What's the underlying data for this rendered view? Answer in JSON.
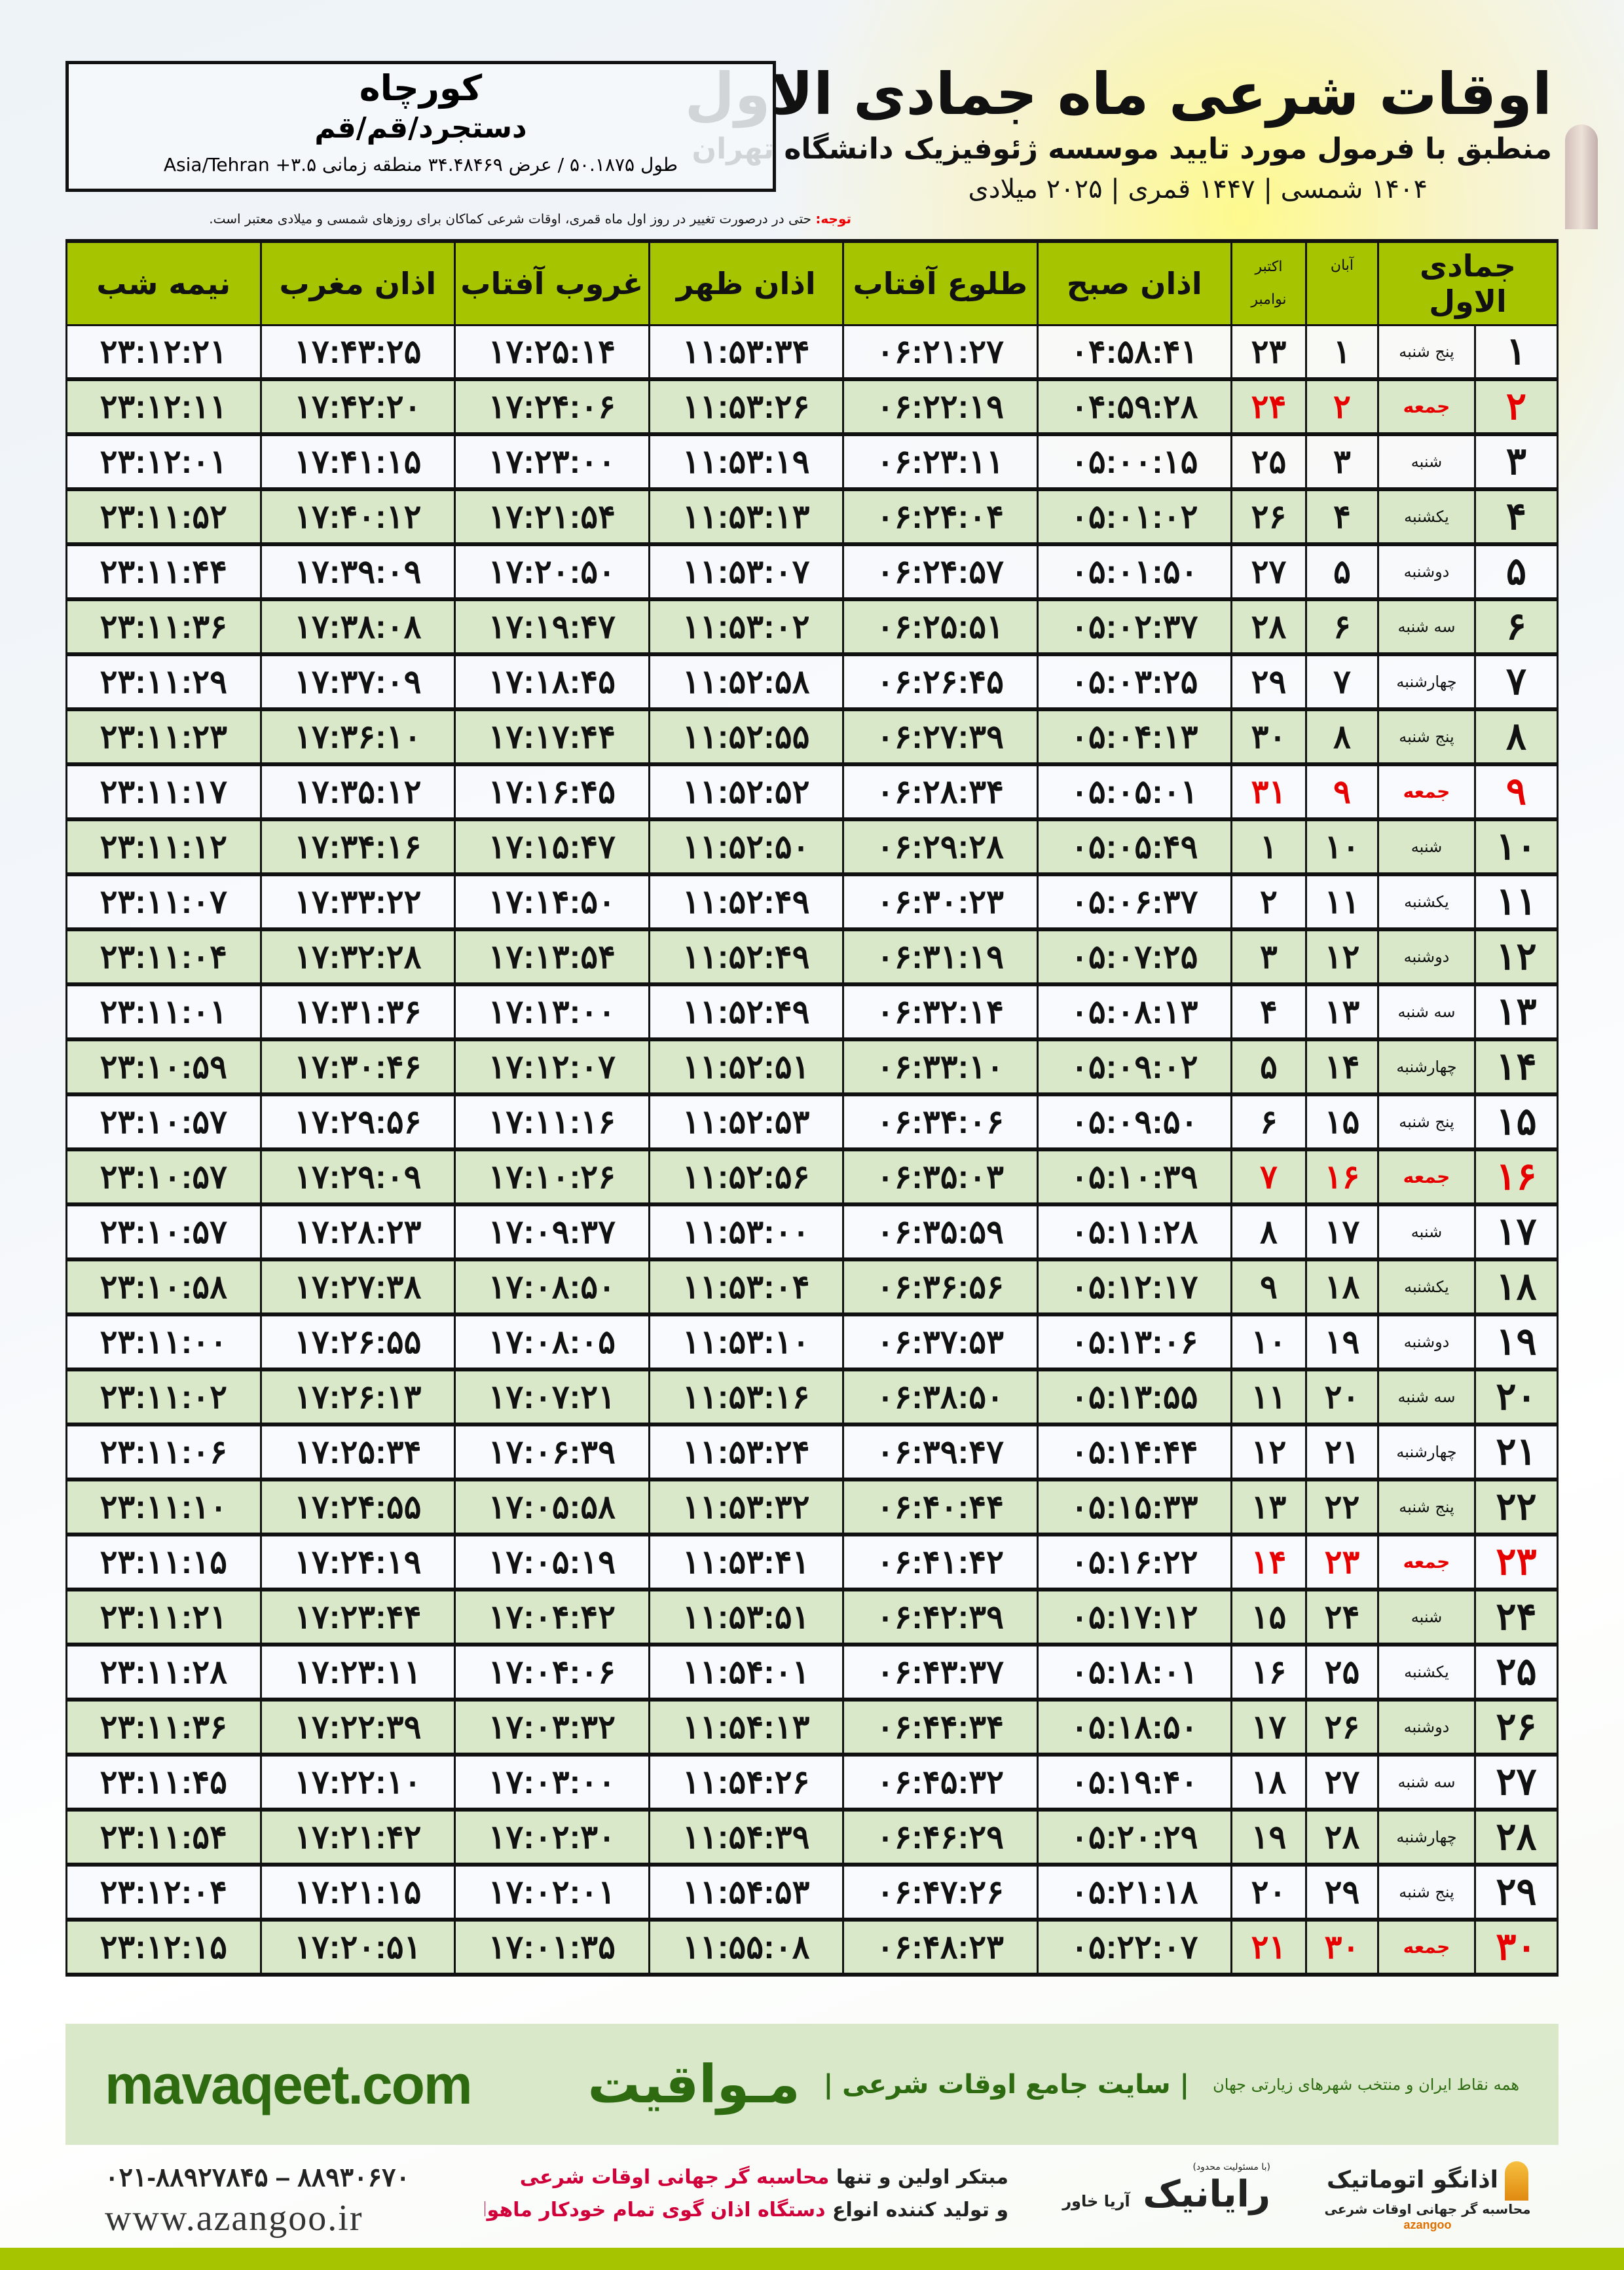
{
  "header": {
    "title": "اوقات شرعی ماه جمادی الاول",
    "subtitle": "منطبق با فرمول مورد تایید موسسه ژئوفیزیک دانشگاه تهران",
    "years": "۱۴۰۴ شمسی | ۱۴۴۷ قمری | ۲۰۲۵ میلادی"
  },
  "location": {
    "city": "کورچاه",
    "province": "دستجرد/قم/قم",
    "coords": "طول ۵۰.۱۸۷۵ / عرض ۳۴.۴۸۴۶۹ منطقه زمانی ۳.۵+ Asia/Tehran"
  },
  "notice": {
    "label": "توجه:",
    "text": " حتی در درصورت تغییر در روز اول ماه قمری، اوقات شرعی کماکان برای روزهای شمسی و میلادی معتبر است."
  },
  "table": {
    "headers": {
      "hijri": "جمادی الاول",
      "aban": "آبان",
      "greg1": "اکتبر",
      "greg2": "نوامبر",
      "fajr": "اذان صبح",
      "sunrise": "طلوع آفتاب",
      "dhuhr": "اذان ظهر",
      "sunset": "غروب آفتاب",
      "maghrib": "اذان مغرب",
      "midnight": "نیمه شب"
    },
    "rows": [
      [
        "۱",
        "پنج شنبه",
        "۱",
        "۲۳",
        "۰۴:۵۸:۴۱",
        "۰۶:۲۱:۲۷",
        "۱۱:۵۳:۳۴",
        "۱۷:۲۵:۱۴",
        "۱۷:۴۳:۲۵",
        "۲۳:۱۲:۲۱"
      ],
      [
        "۲",
        "جمعه",
        "۲",
        "۲۴",
        "۰۴:۵۹:۲۸",
        "۰۶:۲۲:۱۹",
        "۱۱:۵۳:۲۶",
        "۱۷:۲۴:۰۶",
        "۱۷:۴۲:۲۰",
        "۲۳:۱۲:۱۱"
      ],
      [
        "۳",
        "شنبه",
        "۳",
        "۲۵",
        "۰۵:۰۰:۱۵",
        "۰۶:۲۳:۱۱",
        "۱۱:۵۳:۱۹",
        "۱۷:۲۳:۰۰",
        "۱۷:۴۱:۱۵",
        "۲۳:۱۲:۰۱"
      ],
      [
        "۴",
        "یکشنبه",
        "۴",
        "۲۶",
        "۰۵:۰۱:۰۲",
        "۰۶:۲۴:۰۴",
        "۱۱:۵۳:۱۳",
        "۱۷:۲۱:۵۴",
        "۱۷:۴۰:۱۲",
        "۲۳:۱۱:۵۲"
      ],
      [
        "۵",
        "دوشنبه",
        "۵",
        "۲۷",
        "۰۵:۰۱:۵۰",
        "۰۶:۲۴:۵۷",
        "۱۱:۵۳:۰۷",
        "۱۷:۲۰:۵۰",
        "۱۷:۳۹:۰۹",
        "۲۳:۱۱:۴۴"
      ],
      [
        "۶",
        "سه شنبه",
        "۶",
        "۲۸",
        "۰۵:۰۲:۳۷",
        "۰۶:۲۵:۵۱",
        "۱۱:۵۳:۰۲",
        "۱۷:۱۹:۴۷",
        "۱۷:۳۸:۰۸",
        "۲۳:۱۱:۳۶"
      ],
      [
        "۷",
        "چهارشنبه",
        "۷",
        "۲۹",
        "۰۵:۰۳:۲۵",
        "۰۶:۲۶:۴۵",
        "۱۱:۵۲:۵۸",
        "۱۷:۱۸:۴۵",
        "۱۷:۳۷:۰۹",
        "۲۳:۱۱:۲۹"
      ],
      [
        "۸",
        "پنج شنبه",
        "۸",
        "۳۰",
        "۰۵:۰۴:۱۳",
        "۰۶:۲۷:۳۹",
        "۱۱:۵۲:۵۵",
        "۱۷:۱۷:۴۴",
        "۱۷:۳۶:۱۰",
        "۲۳:۱۱:۲۳"
      ],
      [
        "۹",
        "جمعه",
        "۹",
        "۳۱",
        "۰۵:۰۵:۰۱",
        "۰۶:۲۸:۳۴",
        "۱۱:۵۲:۵۲",
        "۱۷:۱۶:۴۵",
        "۱۷:۳۵:۱۲",
        "۲۳:۱۱:۱۷"
      ],
      [
        "۱۰",
        "شنبه",
        "۱۰",
        "۱",
        "۰۵:۰۵:۴۹",
        "۰۶:۲۹:۲۸",
        "۱۱:۵۲:۵۰",
        "۱۷:۱۵:۴۷",
        "۱۷:۳۴:۱۶",
        "۲۳:۱۱:۱۲"
      ],
      [
        "۱۱",
        "یکشنبه",
        "۱۱",
        "۲",
        "۰۵:۰۶:۳۷",
        "۰۶:۳۰:۲۳",
        "۱۱:۵۲:۴۹",
        "۱۷:۱۴:۵۰",
        "۱۷:۳۳:۲۲",
        "۲۳:۱۱:۰۷"
      ],
      [
        "۱۲",
        "دوشنبه",
        "۱۲",
        "۳",
        "۰۵:۰۷:۲۵",
        "۰۶:۳۱:۱۹",
        "۱۱:۵۲:۴۹",
        "۱۷:۱۳:۵۴",
        "۱۷:۳۲:۲۸",
        "۲۳:۱۱:۰۴"
      ],
      [
        "۱۳",
        "سه شنبه",
        "۱۳",
        "۴",
        "۰۵:۰۸:۱۳",
        "۰۶:۳۲:۱۴",
        "۱۱:۵۲:۴۹",
        "۱۷:۱۳:۰۰",
        "۱۷:۳۱:۳۶",
        "۲۳:۱۱:۰۱"
      ],
      [
        "۱۴",
        "چهارشنبه",
        "۱۴",
        "۵",
        "۰۵:۰۹:۰۲",
        "۰۶:۳۳:۱۰",
        "۱۱:۵۲:۵۱",
        "۱۷:۱۲:۰۷",
        "۱۷:۳۰:۴۶",
        "۲۳:۱۰:۵۹"
      ],
      [
        "۱۵",
        "پنج شنبه",
        "۱۵",
        "۶",
        "۰۵:۰۹:۵۰",
        "۰۶:۳۴:۰۶",
        "۱۱:۵۲:۵۳",
        "۱۷:۱۱:۱۶",
        "۱۷:۲۹:۵۶",
        "۲۳:۱۰:۵۷"
      ],
      [
        "۱۶",
        "جمعه",
        "۱۶",
        "۷",
        "۰۵:۱۰:۳۹",
        "۰۶:۳۵:۰۳",
        "۱۱:۵۲:۵۶",
        "۱۷:۱۰:۲۶",
        "۱۷:۲۹:۰۹",
        "۲۳:۱۰:۵۷"
      ],
      [
        "۱۷",
        "شنبه",
        "۱۷",
        "۸",
        "۰۵:۱۱:۲۸",
        "۰۶:۳۵:۵۹",
        "۱۱:۵۳:۰۰",
        "۱۷:۰۹:۳۷",
        "۱۷:۲۸:۲۳",
        "۲۳:۱۰:۵۷"
      ],
      [
        "۱۸",
        "یکشنبه",
        "۱۸",
        "۹",
        "۰۵:۱۲:۱۷",
        "۰۶:۳۶:۵۶",
        "۱۱:۵۳:۰۴",
        "۱۷:۰۸:۵۰",
        "۱۷:۲۷:۳۸",
        "۲۳:۱۰:۵۸"
      ],
      [
        "۱۹",
        "دوشنبه",
        "۱۹",
        "۱۰",
        "۰۵:۱۳:۰۶",
        "۰۶:۳۷:۵۳",
        "۱۱:۵۳:۱۰",
        "۱۷:۰۸:۰۵",
        "۱۷:۲۶:۵۵",
        "۲۳:۱۱:۰۰"
      ],
      [
        "۲۰",
        "سه شنبه",
        "۲۰",
        "۱۱",
        "۰۵:۱۳:۵۵",
        "۰۶:۳۸:۵۰",
        "۱۱:۵۳:۱۶",
        "۱۷:۰۷:۲۱",
        "۱۷:۲۶:۱۳",
        "۲۳:۱۱:۰۲"
      ],
      [
        "۲۱",
        "چهارشنبه",
        "۲۱",
        "۱۲",
        "۰۵:۱۴:۴۴",
        "۰۶:۳۹:۴۷",
        "۱۱:۵۳:۲۴",
        "۱۷:۰۶:۳۹",
        "۱۷:۲۵:۳۴",
        "۲۳:۱۱:۰۶"
      ],
      [
        "۲۲",
        "پنج شنبه",
        "۲۲",
        "۱۳",
        "۰۵:۱۵:۳۳",
        "۰۶:۴۰:۴۴",
        "۱۱:۵۳:۳۲",
        "۱۷:۰۵:۵۸",
        "۱۷:۲۴:۵۵",
        "۲۳:۱۱:۱۰"
      ],
      [
        "۲۳",
        "جمعه",
        "۲۳",
        "۱۴",
        "۰۵:۱۶:۲۲",
        "۰۶:۴۱:۴۲",
        "۱۱:۵۳:۴۱",
        "۱۷:۰۵:۱۹",
        "۱۷:۲۴:۱۹",
        "۲۳:۱۱:۱۵"
      ],
      [
        "۲۴",
        "شنبه",
        "۲۴",
        "۱۵",
        "۰۵:۱۷:۱۲",
        "۰۶:۴۲:۳۹",
        "۱۱:۵۳:۵۱",
        "۱۷:۰۴:۴۲",
        "۱۷:۲۳:۴۴",
        "۲۳:۱۱:۲۱"
      ],
      [
        "۲۵",
        "یکشنبه",
        "۲۵",
        "۱۶",
        "۰۵:۱۸:۰۱",
        "۰۶:۴۳:۳۷",
        "۱۱:۵۴:۰۱",
        "۱۷:۰۴:۰۶",
        "۱۷:۲۳:۱۱",
        "۲۳:۱۱:۲۸"
      ],
      [
        "۲۶",
        "دوشنبه",
        "۲۶",
        "۱۷",
        "۰۵:۱۸:۵۰",
        "۰۶:۴۴:۳۴",
        "۱۱:۵۴:۱۳",
        "۱۷:۰۳:۳۲",
        "۱۷:۲۲:۳۹",
        "۲۳:۱۱:۳۶"
      ],
      [
        "۲۷",
        "سه شنبه",
        "۲۷",
        "۱۸",
        "۰۵:۱۹:۴۰",
        "۰۶:۴۵:۳۲",
        "۱۱:۵۴:۲۶",
        "۱۷:۰۳:۰۰",
        "۱۷:۲۲:۱۰",
        "۲۳:۱۱:۴۵"
      ],
      [
        "۲۸",
        "چهارشنبه",
        "۲۸",
        "۱۹",
        "۰۵:۲۰:۲۹",
        "۰۶:۴۶:۲۹",
        "۱۱:۵۴:۳۹",
        "۱۷:۰۲:۳۰",
        "۱۷:۲۱:۴۲",
        "۲۳:۱۱:۵۴"
      ],
      [
        "۲۹",
        "پنج شنبه",
        "۲۹",
        "۲۰",
        "۰۵:۲۱:۱۸",
        "۰۶:۴۷:۲۶",
        "۱۱:۵۴:۵۳",
        "۱۷:۰۲:۰۱",
        "۱۷:۲۱:۱۵",
        "۲۳:۱۲:۰۴"
      ],
      [
        "۳۰",
        "جمعه",
        "۳۰",
        "۲۱",
        "۰۵:۲۲:۰۷",
        "۰۶:۴۸:۲۳",
        "۱۱:۵۵:۰۸",
        "۱۷:۰۱:۳۵",
        "۱۷:۲۰:۵۱",
        "۲۳:۱۲:۱۵"
      ]
    ],
    "holiday_day": "جمعه",
    "colors": {
      "header": "#a6c400",
      "even_row": "#d9e8c9",
      "holiday": "#e60000"
    }
  },
  "banner": {
    "brand": "مـواقیت",
    "tagline": "| سایت جامع اوقات شرعی |",
    "tagline2": "همه نقاط ایران و منتخب شهرهای زیارتی جهان",
    "site": "mavaqeet.com"
  },
  "footer": {
    "phone": "۰۲۱-۸۸۹۲۷۸۴۵ – ۸۸۹۳۰۶۷۰",
    "web": "www.azangoo.ir",
    "promo1a": "مبتکر اولین و تنها ",
    "promo1b": "محاسبه گر جهانی اوقات شرعی",
    "promo2a": "و تولید کننده انواع ",
    "promo2b": "دستگاه اذان گوی تمام خودکار ماهواره ای",
    "rayanik_note": "(با مسئولیت محدود)",
    "rayanik": "رایانیک",
    "rayanik_sub": "آریا خاور",
    "azangoo": "اذانگو اتوماتیک",
    "azangoo_sub": "محاسبه گر جهانی اوقات شرعی",
    "azangoo_en": "azangoo"
  }
}
